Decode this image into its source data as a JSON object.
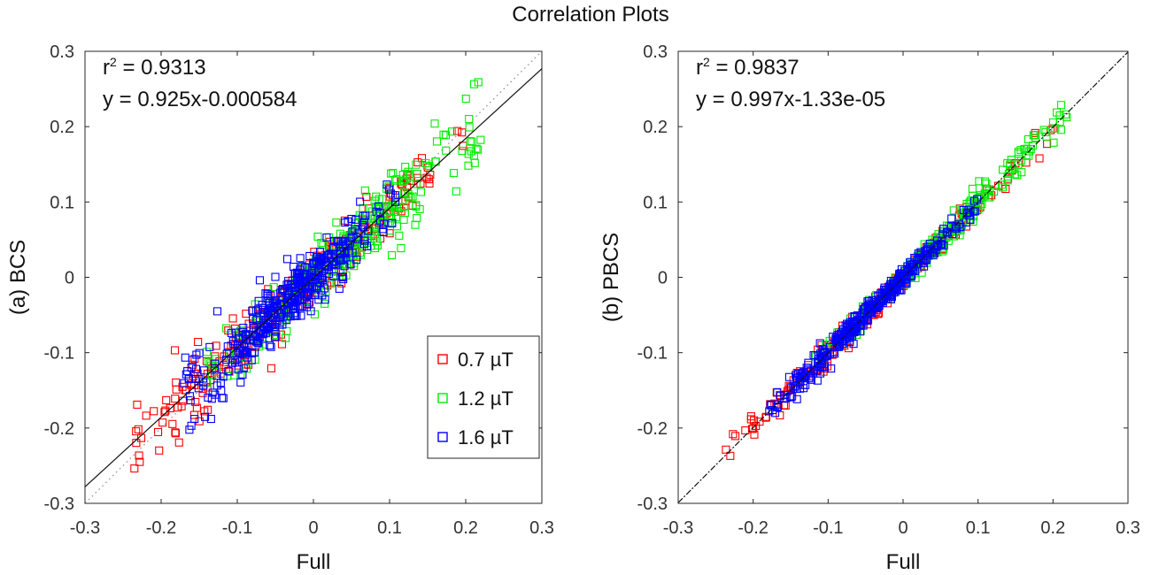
{
  "title": "Correlation Plots",
  "series_colors": {
    "0.7 µT": "#ff0000",
    "1.2 µT": "#00ee00",
    "1.6 µT": "#0000ff"
  },
  "chart_data": [
    {
      "type": "scatter",
      "panel": "a",
      "xlabel": "Full",
      "ylabel": "(a) BCS",
      "xlim": [
        -0.3,
        0.3
      ],
      "ylim": [
        -0.3,
        0.3
      ],
      "xticks": [
        "-0.3",
        "-0.2",
        "-0.1",
        "0",
        "0.1",
        "0.2",
        "0.3"
      ],
      "yticks": [
        "0.3",
        "0.2",
        "0.1",
        "0",
        "-0.1",
        "-0.2",
        "-0.3"
      ],
      "annotation_r2_prefix": "r",
      "annotation_r2_sup": "2",
      "annotation_r2_value": " = 0.9313",
      "annotation_fit": "y = 0.925x-0.000584",
      "fit": {
        "slope": 0.925,
        "intercept": -0.000584
      },
      "identity_line": true,
      "legend": [
        "0.7 µT",
        "1.2 µT",
        "1.6 µT"
      ],
      "legend_position": "bottom-right",
      "series": [
        {
          "name": "0.7 µT",
          "x_range": [
            -0.24,
            0.2
          ],
          "spread": 0.014,
          "count": 280
        },
        {
          "name": "1.2 µT",
          "x_range": [
            -0.14,
            0.22
          ],
          "spread": 0.016,
          "count": 300
        },
        {
          "name": "1.6 µT",
          "x_range": [
            -0.17,
            0.11
          ],
          "spread": 0.016,
          "count": 420
        }
      ]
    },
    {
      "type": "scatter",
      "panel": "b",
      "xlabel": "Full",
      "ylabel": "(b) PBCS",
      "xlim": [
        -0.3,
        0.3
      ],
      "ylim": [
        -0.3,
        0.3
      ],
      "xticks": [
        "-0.3",
        "-0.2",
        "-0.1",
        "0",
        "0.1",
        "0.2",
        "0.3"
      ],
      "yticks": [
        "0.3",
        "0.2",
        "0.1",
        "0",
        "-0.1",
        "-0.2",
        "-0.3"
      ],
      "annotation_r2_prefix": "r",
      "annotation_r2_sup": "2",
      "annotation_r2_value": " = 0.9837",
      "annotation_fit": "y = 0.997x-1.33e-05",
      "fit": {
        "slope": 0.997,
        "intercept": -1.33e-05
      },
      "identity_line": false,
      "series": [
        {
          "name": "0.7 µT",
          "x_range": [
            -0.24,
            0.2
          ],
          "spread": 0.006,
          "count": 250
        },
        {
          "name": "1.2 µT",
          "x_range": [
            -0.12,
            0.22
          ],
          "spread": 0.007,
          "count": 250
        },
        {
          "name": "1.6 µT",
          "x_range": [
            -0.18,
            0.1
          ],
          "spread": 0.006,
          "count": 380
        }
      ]
    }
  ]
}
